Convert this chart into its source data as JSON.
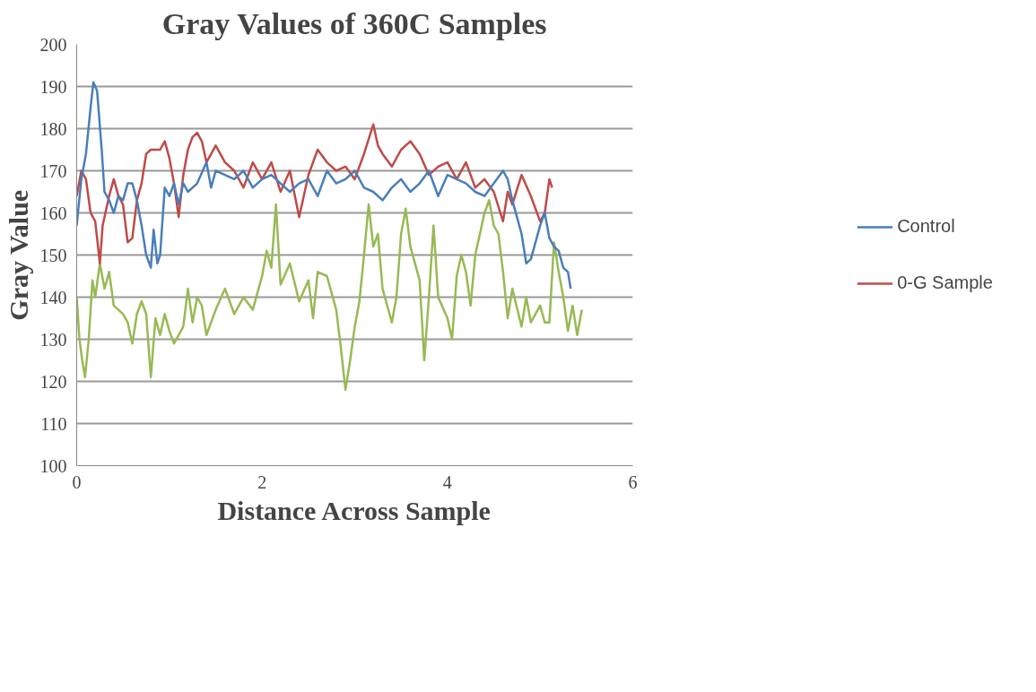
{
  "chart_data": {
    "type": "line",
    "title": "Gray Values of 360C Samples",
    "xlabel": "Distance Across Sample",
    "ylabel": "Gray Value",
    "xlim": [
      0,
      6
    ],
    "xticks": [
      0,
      2,
      4,
      6
    ],
    "ylim": [
      100,
      200
    ],
    "yticks": [
      100,
      110,
      120,
      130,
      140,
      150,
      160,
      170,
      180,
      190,
      200
    ],
    "grid": "y",
    "legend": "right",
    "marker": "none",
    "line_style": "solid",
    "series": [
      {
        "name": "Control",
        "color": "#4a7ebb",
        "x": [
          0,
          0.05,
          0.1,
          0.15,
          0.18,
          0.22,
          0.27,
          0.3,
          0.35,
          0.4,
          0.45,
          0.5,
          0.55,
          0.6,
          0.65,
          0.7,
          0.75,
          0.8,
          0.83,
          0.87,
          0.9,
          0.95,
          1.0,
          1.05,
          1.1,
          1.15,
          1.2,
          1.3,
          1.4,
          1.45,
          1.5,
          1.6,
          1.7,
          1.8,
          1.9,
          2.0,
          2.1,
          2.2,
          2.3,
          2.4,
          2.5,
          2.6,
          2.7,
          2.8,
          2.9,
          3.0,
          3.1,
          3.2,
          3.3,
          3.4,
          3.5,
          3.6,
          3.7,
          3.8,
          3.9,
          4.0,
          4.1,
          4.2,
          4.3,
          4.4,
          4.5,
          4.6,
          4.65,
          4.7,
          4.8,
          4.85,
          4.9,
          5.0,
          5.05,
          5.1,
          5.15,
          5.2,
          5.25,
          5.3,
          5.33
        ],
        "values": [
          157,
          168,
          174,
          185,
          191,
          189,
          175,
          165,
          163,
          160,
          164,
          163,
          167,
          167,
          163,
          157,
          150,
          147,
          156,
          148,
          150,
          166,
          164,
          167,
          162,
          167,
          165,
          167,
          172,
          166,
          170,
          169,
          168,
          170,
          166,
          168,
          169,
          167,
          165,
          167,
          168,
          164,
          170,
          167,
          168,
          170,
          166,
          165,
          163,
          166,
          168,
          165,
          167,
          170,
          164,
          169,
          168,
          167,
          165,
          164,
          167,
          170,
          168,
          163,
          155,
          148,
          149,
          157,
          160,
          154,
          152,
          151,
          147,
          146,
          142
        ]
      },
      {
        "name": "0-G Sample",
        "color": "#be4b48",
        "x": [
          0,
          0.05,
          0.1,
          0.15,
          0.2,
          0.25,
          0.28,
          0.35,
          0.4,
          0.45,
          0.5,
          0.55,
          0.6,
          0.65,
          0.7,
          0.75,
          0.8,
          0.9,
          0.95,
          1.0,
          1.05,
          1.1,
          1.15,
          1.2,
          1.25,
          1.3,
          1.35,
          1.4,
          1.5,
          1.6,
          1.7,
          1.8,
          1.9,
          2.0,
          2.1,
          2.2,
          2.3,
          2.4,
          2.5,
          2.6,
          2.7,
          2.8,
          2.9,
          3.0,
          3.1,
          3.2,
          3.25,
          3.3,
          3.4,
          3.5,
          3.6,
          3.7,
          3.8,
          3.9,
          4.0,
          4.1,
          4.2,
          4.3,
          4.4,
          4.5,
          4.6,
          4.65,
          4.7,
          4.8,
          4.9,
          5.0,
          5.05,
          5.1,
          5.13
        ],
        "values": [
          164,
          170,
          168,
          160,
          158,
          148,
          157,
          164,
          168,
          164,
          162,
          153,
          154,
          163,
          167,
          174,
          175,
          175,
          177,
          173,
          167,
          159,
          169,
          175,
          178,
          179,
          177,
          172,
          176,
          172,
          170,
          166,
          172,
          168,
          172,
          165,
          170,
          159,
          169,
          175,
          172,
          170,
          171,
          168,
          174,
          181,
          176,
          174,
          171,
          175,
          177,
          174,
          169,
          171,
          172,
          168,
          172,
          166,
          168,
          165,
          158,
          165,
          162,
          169,
          164,
          158,
          160,
          168,
          166
        ]
      },
      {
        "color": "#98b954",
        "x": [
          0,
          0.03,
          0.06,
          0.09,
          0.13,
          0.17,
          0.2,
          0.25,
          0.3,
          0.35,
          0.4,
          0.45,
          0.5,
          0.55,
          0.6,
          0.65,
          0.7,
          0.75,
          0.8,
          0.85,
          0.9,
          0.95,
          1.0,
          1.05,
          1.1,
          1.15,
          1.2,
          1.25,
          1.3,
          1.35,
          1.4,
          1.5,
          1.6,
          1.7,
          1.8,
          1.9,
          2.0,
          2.05,
          2.1,
          2.15,
          2.2,
          2.3,
          2.4,
          2.5,
          2.55,
          2.6,
          2.7,
          2.8,
          2.85,
          2.9,
          2.95,
          3.0,
          3.05,
          3.1,
          3.15,
          3.2,
          3.25,
          3.3,
          3.4,
          3.45,
          3.5,
          3.55,
          3.6,
          3.7,
          3.75,
          3.8,
          3.85,
          3.9,
          4.0,
          4.05,
          4.1,
          4.15,
          4.2,
          4.25,
          4.3,
          4.4,
          4.45,
          4.5,
          4.55,
          4.6,
          4.65,
          4.7,
          4.8,
          4.85,
          4.9,
          5.0,
          5.05,
          5.1,
          5.15,
          5.2,
          5.25,
          5.3,
          5.35,
          5.4,
          5.45
        ],
        "values": [
          140,
          130,
          125,
          121,
          130,
          144,
          140,
          148,
          142,
          146,
          138,
          137,
          136,
          134,
          129,
          136,
          139,
          136,
          121,
          135,
          131,
          136,
          132,
          129,
          131,
          133,
          142,
          134,
          140,
          138,
          131,
          137,
          142,
          136,
          140,
          137,
          145,
          151,
          147,
          162,
          143,
          148,
          139,
          144,
          135,
          146,
          145,
          137,
          128,
          118,
          125,
          133,
          139,
          150,
          162,
          152,
          155,
          142,
          134,
          140,
          155,
          161,
          152,
          144,
          125,
          140,
          157,
          140,
          135,
          130,
          145,
          150,
          146,
          138,
          150,
          160,
          163,
          157,
          155,
          146,
          135,
          142,
          133,
          140,
          134,
          138,
          134,
          134,
          153,
          146,
          140,
          132,
          138,
          131,
          137
        ]
      }
    ]
  }
}
